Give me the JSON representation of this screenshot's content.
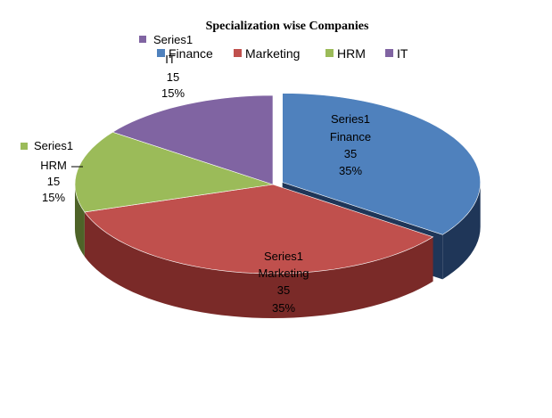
{
  "chart_data": {
    "type": "pie",
    "title": "Specialization wise Companies",
    "series_name": "Series1",
    "categories": [
      "Finance",
      "Marketing",
      "HRM",
      "IT"
    ],
    "values": [
      35,
      35,
      15,
      15
    ],
    "percent_labels": [
      "35%",
      "35%",
      "15%",
      "15%"
    ],
    "colors": [
      "#4f81bd",
      "#c0504d",
      "#9bbb59",
      "#8064a2"
    ],
    "side_colors": [
      "#1f3658",
      "#7a2a28",
      "#4e6328",
      "#4a3a6a"
    ],
    "legend_position": "top",
    "exploded": "Finance",
    "three_d": true
  }
}
